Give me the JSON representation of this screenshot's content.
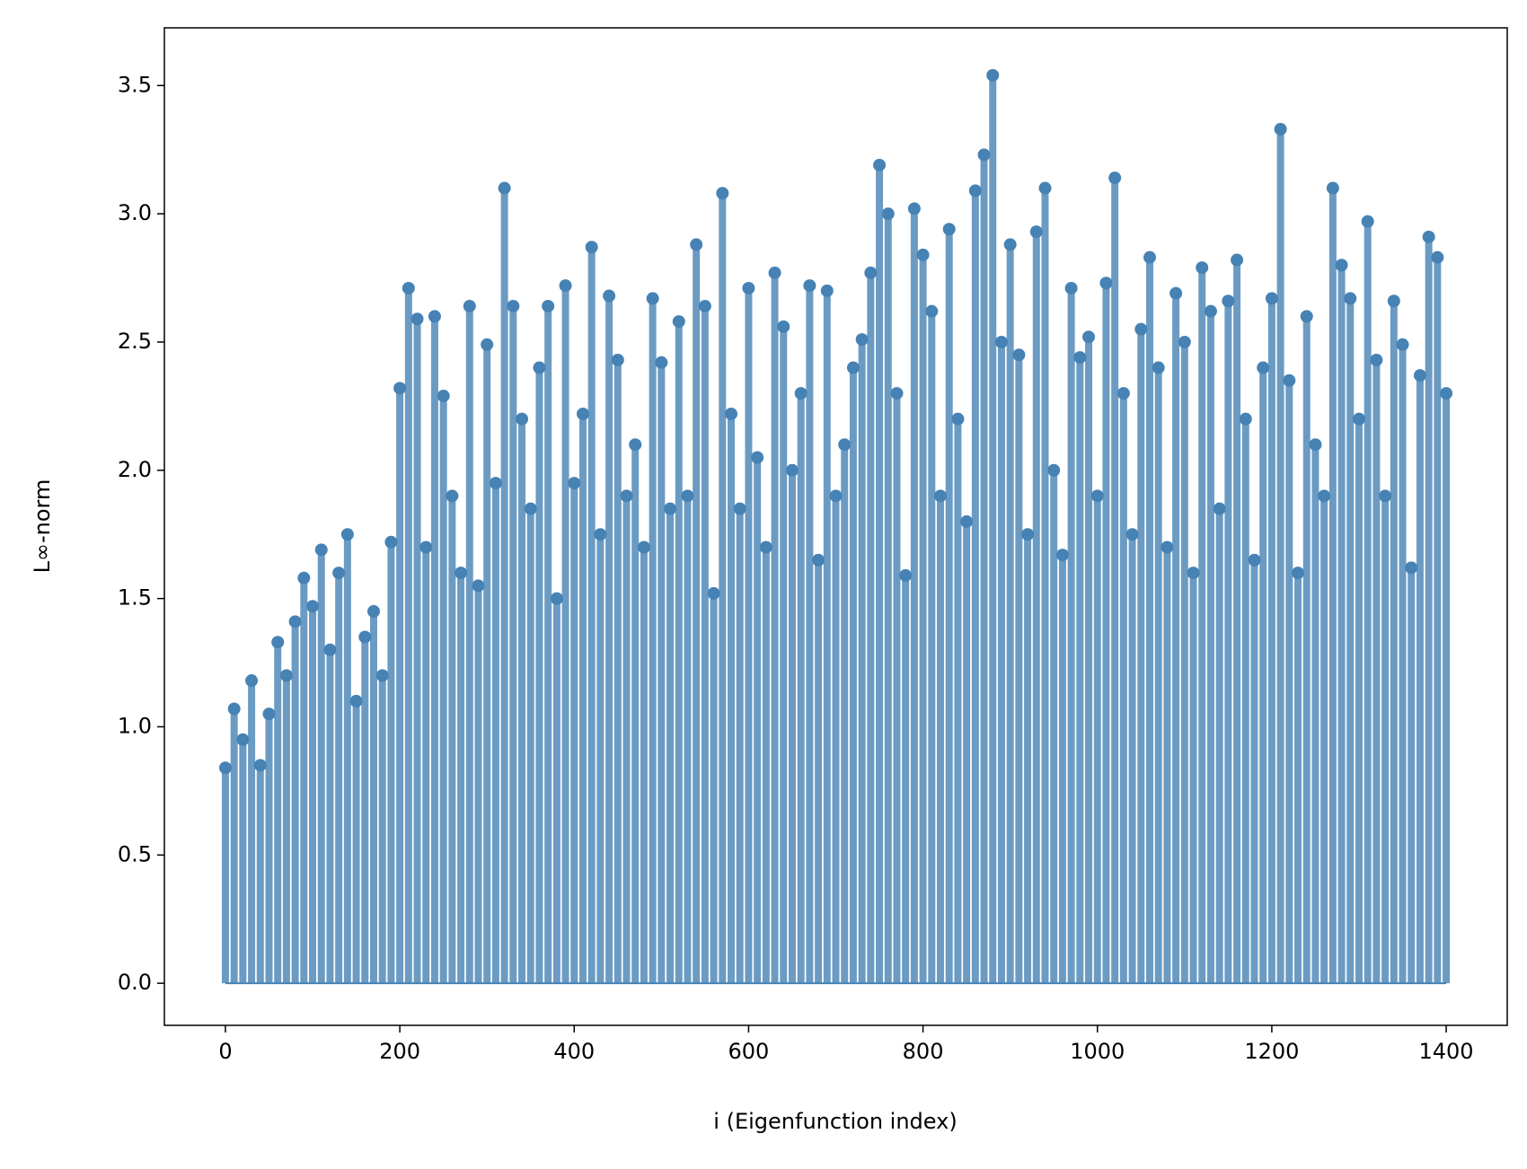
{
  "chart_data": {
    "type": "stem",
    "x_label": "i (Eigenfunction index)",
    "y_label": "L∞-norm",
    "x": [
      0,
      10,
      20,
      30,
      40,
      50,
      60,
      70,
      80,
      90,
      100,
      110,
      120,
      130,
      140,
      150,
      160,
      170,
      180,
      190,
      200,
      210,
      220,
      230,
      240,
      250,
      260,
      270,
      280,
      290,
      300,
      310,
      320,
      330,
      340,
      350,
      360,
      370,
      380,
      390,
      400,
      410,
      420,
      430,
      440,
      450,
      460,
      470,
      480,
      490,
      500,
      510,
      520,
      530,
      540,
      550,
      560,
      570,
      580,
      590,
      600,
      610,
      620,
      630,
      640,
      650,
      660,
      670,
      680,
      690,
      700,
      710,
      720,
      730,
      740,
      750,
      760,
      770,
      780,
      790,
      800,
      810,
      820,
      830,
      840,
      850,
      860,
      870,
      880,
      890,
      900,
      910,
      920,
      930,
      940,
      950,
      960,
      970,
      980,
      990,
      1000,
      1010,
      1020,
      1030,
      1040,
      1050,
      1060,
      1070,
      1080,
      1090,
      1100,
      1110,
      1120,
      1130,
      1140,
      1150,
      1160,
      1170,
      1180,
      1190,
      1200,
      1210,
      1220,
      1230,
      1240,
      1250,
      1260,
      1270,
      1280,
      1290,
      1300,
      1310,
      1320,
      1330,
      1340,
      1350,
      1360,
      1370,
      1380,
      1390,
      1400
    ],
    "values": [
      0.84,
      1.07,
      0.95,
      1.18,
      0.85,
      1.05,
      1.33,
      1.2,
      1.41,
      1.58,
      1.47,
      1.69,
      1.3,
      1.6,
      1.75,
      1.1,
      1.35,
      1.45,
      1.2,
      1.72,
      2.32,
      2.71,
      2.59,
      1.7,
      2.6,
      2.29,
      1.9,
      1.6,
      2.64,
      1.55,
      2.49,
      1.95,
      3.1,
      2.64,
      2.2,
      1.85,
      2.4,
      2.64,
      1.5,
      2.72,
      1.95,
      2.22,
      2.87,
      1.75,
      2.68,
      2.43,
      1.9,
      2.1,
      1.7,
      2.67,
      2.42,
      1.85,
      2.58,
      1.9,
      2.88,
      2.64,
      1.52,
      3.08,
      2.22,
      1.85,
      2.71,
      2.05,
      1.7,
      2.77,
      2.56,
      2.0,
      2.3,
      2.72,
      1.65,
      2.7,
      1.9,
      2.1,
      2.4,
      2.51,
      2.77,
      3.19,
      3.0,
      2.3,
      1.59,
      3.02,
      2.84,
      2.62,
      1.9,
      2.94,
      2.2,
      1.8,
      3.09,
      3.23,
      3.54,
      2.5,
      2.88,
      2.45,
      1.75,
      2.93,
      3.1,
      2.0,
      1.67,
      2.71,
      2.44,
      2.52,
      1.9,
      2.73,
      3.14,
      2.3,
      1.75,
      2.55,
      2.83,
      2.4,
      1.7,
      2.69,
      2.5,
      1.6,
      2.79,
      2.62,
      1.85,
      2.66,
      2.82,
      2.2,
      1.65,
      2.4,
      2.67,
      3.33,
      2.35,
      1.6,
      2.6,
      2.1,
      1.9,
      3.1,
      2.8,
      2.67,
      2.2,
      2.97,
      2.43,
      1.9,
      2.66,
      2.49,
      1.62,
      2.37,
      2.91,
      2.83,
      2.3
    ],
    "color": "#4682b4",
    "xlim": [
      -70,
      1470
    ],
    "ylim": [
      -0.164,
      3.725
    ],
    "xticks": [
      0,
      200,
      400,
      600,
      800,
      1000,
      1200,
      1400
    ],
    "yticks": [
      {
        "value": 0,
        "label": "0.0"
      },
      {
        "value": 0.5,
        "label": "0.5"
      },
      {
        "value": 1,
        "label": "1.0"
      },
      {
        "value": 1.5,
        "label": "1.5"
      },
      {
        "value": 2,
        "label": "2.0"
      },
      {
        "value": 2.5,
        "label": "2.5"
      },
      {
        "value": 3,
        "label": "3.0"
      },
      {
        "value": 3.5,
        "label": "3.5"
      }
    ]
  }
}
